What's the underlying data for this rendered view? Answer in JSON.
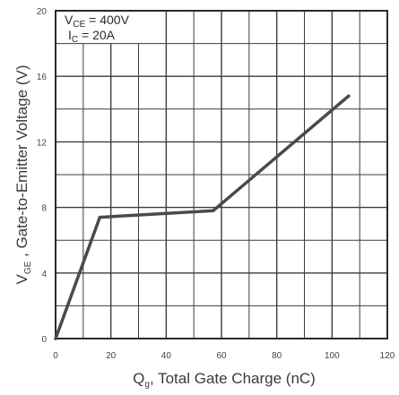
{
  "chart_data": {
    "type": "line",
    "xlabel": {
      "main": "Q",
      "sub": "g",
      "rest": ", Total Gate Charge (nC)"
    },
    "ylabel": {
      "main": "V",
      "sub": "GE",
      "rest": " , Gate-to-Emitter Voltage (V)"
    },
    "xlim": [
      0,
      120
    ],
    "ylim": [
      0,
      20
    ],
    "x_ticks": [
      0,
      20,
      40,
      60,
      80,
      100,
      120
    ],
    "y_ticks": [
      0,
      4,
      8,
      12,
      16,
      20
    ],
    "grid": true,
    "annotations": [
      {
        "main": "V",
        "sub": "CE",
        "rest": " = 400V"
      },
      {
        "main": "I",
        "sub": "C",
        "rest": " = 20A"
      }
    ],
    "series": [
      {
        "x": [
          0,
          16,
          57,
          106
        ],
        "y": [
          0,
          7.4,
          7.8,
          14.8
        ]
      }
    ],
    "colors": {
      "line": "#4a4a4a",
      "grid": "#3c3c3c",
      "frame": "#2a2a2a"
    }
  }
}
